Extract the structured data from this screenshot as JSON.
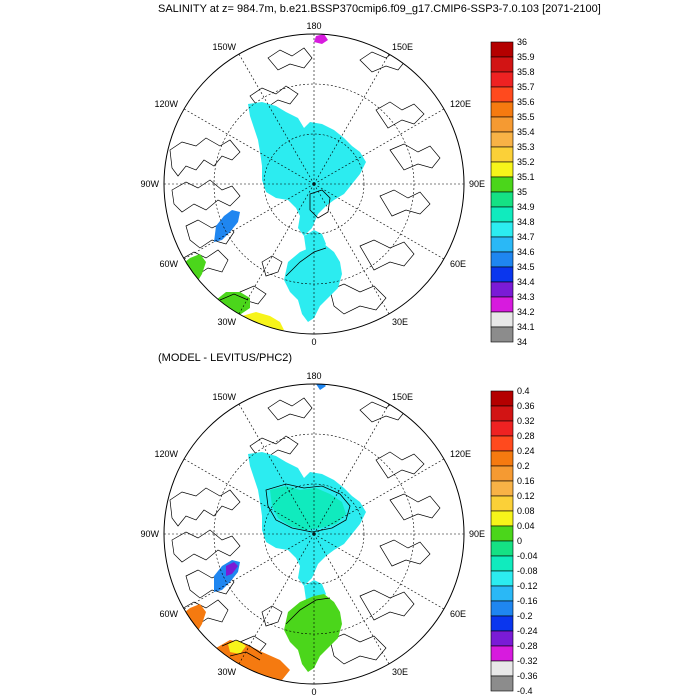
{
  "panels": [
    {
      "title": "SALINITY at z= 984.7m, b.e21.BSSP370cmip6.f09_g17.CMIP6-SSP3-7.0.103 [2071-2100]",
      "lon_labels": [
        "180",
        "150E",
        "120E",
        "90E",
        "60E",
        "30E",
        "0",
        "30W",
        "60W",
        "90W",
        "120W",
        "150W"
      ],
      "colorbar": {
        "labels": [
          "36",
          "35.9",
          "35.8",
          "35.7",
          "35.6",
          "35.5",
          "35.4",
          "35.3",
          "35.2",
          "35.1",
          "35",
          "34.9",
          "34.8",
          "34.7",
          "34.6",
          "34.5",
          "34.4",
          "34.3",
          "34.2",
          "34.1",
          "34"
        ],
        "colors": [
          "#b40000",
          "#d21414",
          "#ee2222",
          "#ff4a1e",
          "#f57a10",
          "#f59a32",
          "#f8b246",
          "#fbd038",
          "#f7f41a",
          "#4bd61b",
          "#15e184",
          "#10ebbe",
          "#2cecf0",
          "#2ab8f6",
          "#1f86f0",
          "#0a36ee",
          "#7a1bd6",
          "#d71bde",
          "#e8e8e8",
          "#8c8c8c"
        ]
      }
    },
    {
      "title": "(MODEL - LEVITUS/PHC2)",
      "lon_labels": [
        "180",
        "150E",
        "120E",
        "90E",
        "60E",
        "30E",
        "0",
        "30W",
        "60W",
        "90W",
        "120W",
        "150W"
      ],
      "colorbar": {
        "labels": [
          "0.4",
          "0.36",
          "0.32",
          "0.28",
          "0.24",
          "0.2",
          "0.16",
          "0.12",
          "0.08",
          "0.04",
          "0",
          "-0.04",
          "-0.08",
          "-0.12",
          "-0.16",
          "-0.2",
          "-0.24",
          "-0.28",
          "-0.32",
          "-0.36",
          "-0.4"
        ],
        "colors": [
          "#b40000",
          "#d21414",
          "#ee2222",
          "#ff4a1e",
          "#f57a10",
          "#f59a32",
          "#f8b246",
          "#fbd038",
          "#f7f41a",
          "#4bd61b",
          "#15e184",
          "#10ebbe",
          "#2cecf0",
          "#2ab8f6",
          "#1f86f0",
          "#0a36ee",
          "#7a1bd6",
          "#d71bde",
          "#e8e8e8",
          "#8c8c8c"
        ]
      }
    }
  ]
}
